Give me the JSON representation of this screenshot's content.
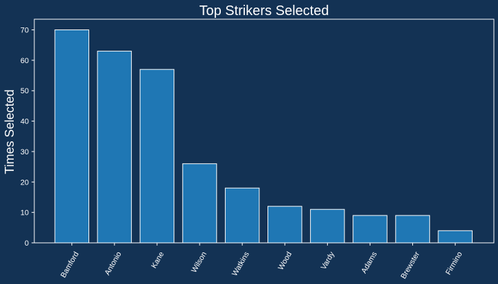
{
  "chart_data": {
    "type": "bar",
    "title": "Top Strikers Selected",
    "xlabel": "",
    "ylabel": "Times Selected",
    "categories": [
      "Bamford",
      "Antonio",
      "Kane",
      "Wilson",
      "Watkins",
      "Wood",
      "Vardy",
      "Adams",
      "Brewster",
      "Firmino"
    ],
    "values": [
      70,
      63,
      57,
      26,
      18,
      12,
      11,
      9,
      9,
      4
    ],
    "ylim": [
      0,
      73.5
    ],
    "yticks": [
      0,
      10,
      20,
      30,
      40,
      50,
      60,
      70
    ],
    "grid": false,
    "colors": {
      "background": "#133254",
      "bar": "#1f77b4",
      "bar_edge": "#ffffff",
      "text": "#ffffff",
      "axes": "#ffffff"
    }
  }
}
